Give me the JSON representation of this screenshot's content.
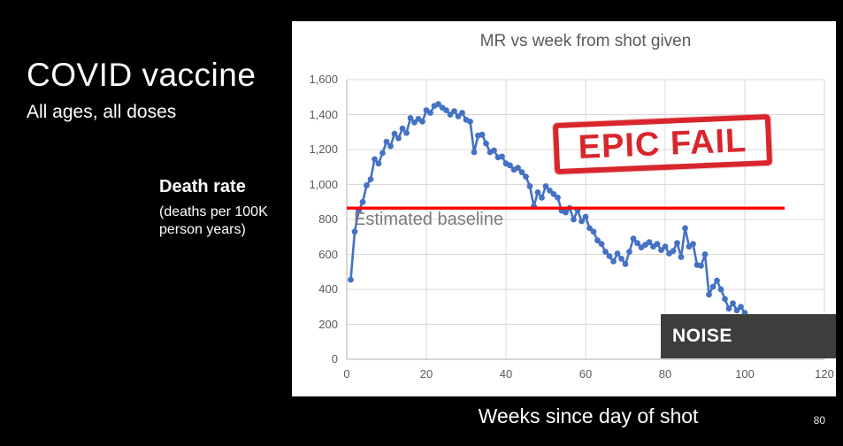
{
  "slide": {
    "title": "COVID vaccine",
    "subtitle": "All ages, all doses",
    "y_axis_title": "Death rate",
    "y_axis_subtitle_line1": "(deaths per 100K",
    "y_axis_subtitle_line2": "person years)",
    "x_axis_label": "Weeks since day of shot",
    "page_number": "80"
  },
  "annotations": {
    "epic_fail_stamp": "EPIC FAIL",
    "baseline_label": "Estimated baseline",
    "noise_label": "NOISE"
  },
  "colors": {
    "slide_background": "#000000",
    "chart_background": "#ffffff",
    "series_blue": "#4472c4",
    "baseline_red": "#ff0000",
    "stamp_red": "#d8262c",
    "noise_box_gray": "#3d3d3d",
    "axis_text_gray": "#595959",
    "gridline_gray": "#d9d9d9",
    "slide_text": "#ffffff"
  },
  "chart_data": {
    "type": "scatter-line",
    "title": "MR vs week from shot given",
    "xlabel": "Weeks since day of shot",
    "ylabel": "Death rate (deaths per 100K person years)",
    "xlim": [
      0,
      120
    ],
    "ylim": [
      0,
      1600
    ],
    "x_ticks": [
      0,
      20,
      40,
      60,
      80,
      100,
      120
    ],
    "y_ticks": [
      0,
      200,
      400,
      600,
      800,
      1000,
      1200,
      1400,
      1600
    ],
    "y_tick_labels": [
      "0",
      "200",
      "400",
      "600",
      "800",
      "1,000",
      "1,200",
      "1,400",
      "1,600"
    ],
    "grid": true,
    "grid_color": "#d9d9d9",
    "axis_color": "#bfbfbf",
    "series_color": "#4472c4",
    "baseline_color": "#ff0000",
    "baseline": {
      "value": 865,
      "x_start": 0,
      "x_end": 110,
      "label": "Estimated baseline"
    },
    "x": [
      1,
      2,
      3,
      4,
      5,
      6,
      7,
      8,
      9,
      10,
      11,
      12,
      13,
      14,
      15,
      16,
      17,
      18,
      19,
      20,
      21,
      22,
      23,
      24,
      25,
      26,
      27,
      28,
      29,
      30,
      31,
      32,
      33,
      34,
      35,
      36,
      37,
      38,
      39,
      40,
      41,
      42,
      43,
      44,
      45,
      46,
      47,
      48,
      49,
      50,
      51,
      52,
      53,
      54,
      55,
      56,
      57,
      58,
      59,
      60,
      61,
      62,
      63,
      64,
      65,
      66,
      67,
      68,
      69,
      70,
      71,
      72,
      73,
      74,
      75,
      76,
      77,
      78,
      79,
      80,
      81,
      82,
      83,
      84,
      85,
      86,
      87,
      88,
      89,
      90,
      91,
      92,
      93,
      94,
      95,
      96,
      97,
      98,
      99,
      100
    ],
    "values": [
      455,
      730,
      850,
      900,
      995,
      1030,
      1145,
      1120,
      1180,
      1245,
      1220,
      1290,
      1265,
      1320,
      1295,
      1380,
      1355,
      1375,
      1360,
      1425,
      1410,
      1450,
      1460,
      1440,
      1425,
      1400,
      1420,
      1390,
      1410,
      1370,
      1360,
      1185,
      1280,
      1285,
      1235,
      1185,
      1195,
      1155,
      1160,
      1120,
      1110,
      1085,
      1095,
      1070,
      1045,
      990,
      875,
      955,
      925,
      990,
      965,
      945,
      925,
      850,
      840,
      865,
      800,
      855,
      790,
      815,
      750,
      730,
      680,
      660,
      615,
      590,
      560,
      605,
      575,
      545,
      615,
      690,
      665,
      640,
      655,
      670,
      645,
      660,
      625,
      645,
      605,
      620,
      665,
      585,
      750,
      645,
      660,
      540,
      535,
      600,
      370,
      415,
      450,
      400,
      345,
      290,
      320,
      280,
      300,
      265
    ]
  }
}
